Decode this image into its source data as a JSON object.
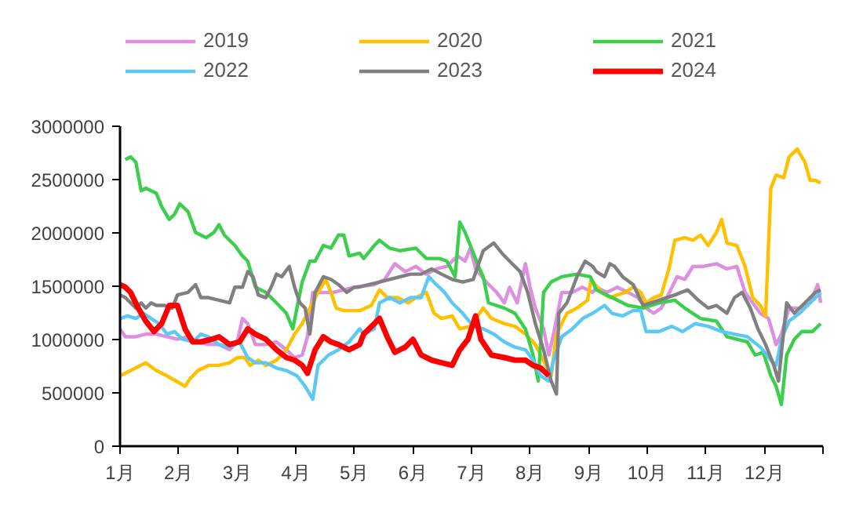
{
  "chart_data": {
    "type": "line",
    "xlim": [
      1,
      13
    ],
    "ylim": [
      0,
      3000000
    ],
    "xticks": [
      {
        "value": 1,
        "label": "1月"
      },
      {
        "value": 2,
        "label": "2月"
      },
      {
        "value": 3,
        "label": "3月"
      },
      {
        "value": 4,
        "label": "4月"
      },
      {
        "value": 5,
        "label": "5月"
      },
      {
        "value": 6,
        "label": "6月"
      },
      {
        "value": 7,
        "label": "7月"
      },
      {
        "value": 8,
        "label": "8月"
      },
      {
        "value": 9,
        "label": "9月"
      },
      {
        "value": 10,
        "label": "10月"
      },
      {
        "value": 11,
        "label": "11月"
      },
      {
        "value": 12,
        "label": "12月"
      },
      {
        "value": 13,
        "label": null
      }
    ],
    "yticks": [
      0,
      500000,
      1000000,
      1500000,
      2000000,
      2500000,
      3000000
    ],
    "grid": false,
    "legend": "top",
    "marker": "none",
    "line_style": "solid",
    "series": [
      {
        "name": "2019",
        "color": "#dd8fe0",
        "x": [
          1.0,
          1.09,
          1.27,
          1.44,
          1.62,
          1.8,
          1.98,
          2.16,
          2.33,
          2.51,
          2.69,
          2.87,
          3.0,
          3.09,
          3.18,
          3.31,
          3.49,
          3.67,
          3.84,
          3.98,
          4.11,
          4.2,
          4.29,
          4.47,
          4.64,
          4.82,
          5.0,
          5.34,
          5.52,
          5.69,
          5.87,
          6.05,
          6.23,
          6.4,
          6.58,
          6.76,
          6.89,
          6.98,
          7.07,
          7.25,
          7.43,
          7.56,
          7.65,
          7.78,
          7.92,
          8.0,
          8.09,
          8.23,
          8.32,
          8.4,
          8.54,
          8.72,
          8.89,
          9.07,
          9.13,
          9.31,
          9.49,
          9.67,
          9.84,
          9.98,
          10.11,
          10.24,
          10.38,
          10.51,
          10.64,
          10.78,
          10.96,
          11.18,
          11.36,
          11.53,
          11.67,
          11.8,
          11.93,
          12.07,
          12.2,
          12.29,
          12.42,
          12.6,
          12.78,
          12.91,
          12.96
        ],
        "values": [
          1100000,
          1026000,
          1026000,
          1051000,
          1051000,
          1026000,
          1002000,
          1026000,
          978000,
          953000,
          953000,
          904000,
          978000,
          1198000,
          1149000,
          953000,
          953000,
          978000,
          904000,
          831000,
          855000,
          1026000,
          1442000,
          1442000,
          1442000,
          1466000,
          1491000,
          1515000,
          1564000,
          1711000,
          1637000,
          1686000,
          1613000,
          1662000,
          1686000,
          1784000,
          1735000,
          1857000,
          1662000,
          1540000,
          1442000,
          1344000,
          1491000,
          1344000,
          1711000,
          1491000,
          1295000,
          1100000,
          855000,
          1051000,
          1442000,
          1442000,
          1491000,
          1442000,
          1491000,
          1442000,
          1491000,
          1442000,
          1393000,
          1295000,
          1246000,
          1295000,
          1442000,
          1589000,
          1564000,
          1686000,
          1686000,
          1711000,
          1662000,
          1686000,
          1442000,
          1344000,
          1246000,
          1198000,
          953000,
          1051000,
          1295000,
          1295000,
          1344000,
          1515000,
          1344000
        ]
      },
      {
        "name": "2020",
        "color": "#ffc000",
        "x": [
          1.0,
          1.18,
          1.44,
          1.62,
          1.8,
          2.11,
          2.2,
          2.33,
          2.51,
          2.69,
          2.87,
          3.0,
          3.13,
          3.22,
          3.36,
          3.49,
          3.67,
          3.84,
          3.98,
          4.11,
          4.24,
          4.38,
          4.51,
          4.6,
          4.69,
          4.82,
          5.09,
          5.29,
          5.43,
          5.56,
          5.74,
          5.92,
          6.05,
          6.23,
          6.36,
          6.49,
          6.67,
          6.8,
          6.98,
          7.2,
          7.34,
          7.56,
          7.74,
          7.92,
          8.09,
          8.27,
          8.36,
          8.45,
          8.63,
          8.8,
          8.98,
          9.04,
          9.22,
          9.36,
          9.49,
          9.62,
          9.76,
          9.89,
          9.98,
          10.11,
          10.24,
          10.38,
          10.47,
          10.64,
          10.78,
          10.91,
          11.04,
          11.18,
          11.27,
          11.36,
          11.53,
          11.67,
          11.8,
          11.93,
          12.02,
          12.11,
          12.2,
          12.33,
          12.42,
          12.56,
          12.69,
          12.78,
          12.87,
          12.96
        ],
        "values": [
          660000,
          709000,
          782000,
          709000,
          660000,
          562000,
          635000,
          709000,
          758000,
          758000,
          782000,
          831000,
          831000,
          758000,
          807000,
          758000,
          807000,
          904000,
          1051000,
          1149000,
          1295000,
          1442000,
          1564000,
          1442000,
          1295000,
          1271000,
          1271000,
          1320000,
          1466000,
          1393000,
          1393000,
          1344000,
          1393000,
          1442000,
          1246000,
          1198000,
          1222000,
          1100000,
          1124000,
          1295000,
          1198000,
          1149000,
          1124000,
          1051000,
          953000,
          758000,
          660000,
          1051000,
          1246000,
          1295000,
          1369000,
          1564000,
          1442000,
          1393000,
          1418000,
          1442000,
          1491000,
          1442000,
          1344000,
          1393000,
          1418000,
          1686000,
          1931000,
          1955000,
          1931000,
          1980000,
          1882000,
          2004000,
          2126000,
          1906000,
          1882000,
          1686000,
          1393000,
          1320000,
          1222000,
          2420000,
          2542000,
          2517000,
          2713000,
          2786000,
          2664000,
          2493000,
          2493000,
          2468000
        ]
      },
      {
        "name": "2021",
        "color": "#3ccf4e",
        "x": [
          1.09,
          1.18,
          1.27,
          1.36,
          1.44,
          1.53,
          1.62,
          1.71,
          1.84,
          1.93,
          2.02,
          2.16,
          2.29,
          2.47,
          2.6,
          2.69,
          2.78,
          2.96,
          3.09,
          3.18,
          3.31,
          3.49,
          3.67,
          3.84,
          3.95,
          4.02,
          4.11,
          4.24,
          4.33,
          4.47,
          4.6,
          4.73,
          4.82,
          4.91,
          5.09,
          5.16,
          5.34,
          5.43,
          5.6,
          5.78,
          6.05,
          6.23,
          6.45,
          6.58,
          6.72,
          6.8,
          6.89,
          6.98,
          7.12,
          7.2,
          7.29,
          7.56,
          7.74,
          7.92,
          8.05,
          8.14,
          8.23,
          8.36,
          8.54,
          8.8,
          9.03,
          9.13,
          9.4,
          9.67,
          9.93,
          10.2,
          10.47,
          10.64,
          10.91,
          11.18,
          11.36,
          11.53,
          11.71,
          11.84,
          11.98,
          12.11,
          12.2,
          12.29,
          12.38,
          12.51,
          12.64,
          12.82,
          12.96
        ],
        "values": [
          2688000,
          2713000,
          2664000,
          2395000,
          2420000,
          2395000,
          2371000,
          2248000,
          2126000,
          2175000,
          2273000,
          2200000,
          2004000,
          1955000,
          2004000,
          2077000,
          1980000,
          1882000,
          1784000,
          1735000,
          1491000,
          1442000,
          1344000,
          1246000,
          1100000,
          1295000,
          1540000,
          1735000,
          1735000,
          1882000,
          1857000,
          1980000,
          1980000,
          1784000,
          1809000,
          1760000,
          1882000,
          1931000,
          1857000,
          1833000,
          1857000,
          1760000,
          1760000,
          1735000,
          1589000,
          2102000,
          2004000,
          1882000,
          1686000,
          1589000,
          1344000,
          1295000,
          1246000,
          1100000,
          855000,
          611000,
          1442000,
          1540000,
          1589000,
          1613000,
          1589000,
          1466000,
          1393000,
          1320000,
          1295000,
          1344000,
          1369000,
          1295000,
          1198000,
          1173000,
          1026000,
          1002000,
          978000,
          855000,
          880000,
          660000,
          562000,
          391000,
          855000,
          1002000,
          1075000,
          1075000,
          1149000
        ]
      },
      {
        "name": "2022",
        "color": "#5bc8f5",
        "x": [
          1.0,
          1.13,
          1.27,
          1.4,
          1.53,
          1.67,
          1.8,
          1.93,
          2.07,
          2.24,
          2.38,
          2.51,
          2.69,
          2.87,
          3.04,
          3.18,
          3.31,
          3.49,
          3.67,
          3.84,
          4.02,
          4.16,
          4.29,
          4.38,
          4.56,
          4.73,
          4.91,
          5.09,
          5.16,
          5.34,
          5.43,
          5.6,
          5.78,
          5.96,
          6.14,
          6.27,
          6.4,
          6.54,
          6.67,
          6.85,
          7.03,
          7.2,
          7.38,
          7.56,
          7.74,
          7.92,
          8.05,
          8.18,
          8.32,
          8.4,
          8.54,
          8.72,
          8.9,
          9.07,
          9.27,
          9.4,
          9.58,
          9.76,
          9.89,
          9.98,
          10.2,
          10.42,
          10.6,
          10.82,
          11.04,
          11.27,
          11.49,
          11.71,
          11.93,
          12.11,
          12.2,
          12.29,
          12.42,
          12.6,
          12.78,
          12.96
        ],
        "values": [
          1198000,
          1222000,
          1198000,
          1246000,
          1198000,
          1149000,
          1051000,
          1075000,
          1002000,
          978000,
          1051000,
          1026000,
          953000,
          929000,
          978000,
          831000,
          782000,
          782000,
          733000,
          709000,
          660000,
          562000,
          440000,
          758000,
          855000,
          904000,
          978000,
          1100000,
          1051000,
          1100000,
          1344000,
          1393000,
          1344000,
          1393000,
          1393000,
          1589000,
          1515000,
          1442000,
          1344000,
          1246000,
          1124000,
          1100000,
          1051000,
          978000,
          929000,
          904000,
          807000,
          660000,
          611000,
          807000,
          1026000,
          1100000,
          1198000,
          1246000,
          1320000,
          1246000,
          1222000,
          1271000,
          1271000,
          1075000,
          1075000,
          1124000,
          1075000,
          1149000,
          1124000,
          1075000,
          1051000,
          1026000,
          929000,
          807000,
          758000,
          1002000,
          1173000,
          1246000,
          1344000,
          1442000
        ]
      },
      {
        "name": "2023",
        "color": "#808080",
        "x": [
          1.0,
          1.09,
          1.18,
          1.27,
          1.36,
          1.44,
          1.53,
          1.62,
          1.76,
          1.89,
          1.98,
          2.16,
          2.29,
          2.38,
          2.51,
          2.69,
          2.87,
          2.96,
          3.09,
          3.18,
          3.27,
          3.36,
          3.49,
          3.58,
          3.67,
          3.76,
          3.89,
          3.98,
          4.07,
          4.16,
          4.24,
          4.33,
          4.47,
          4.6,
          4.73,
          4.87,
          5.0,
          5.07,
          5.25,
          5.43,
          5.6,
          5.78,
          5.96,
          6.14,
          6.32,
          6.49,
          6.67,
          6.85,
          7.03,
          7.2,
          7.38,
          7.52,
          7.65,
          7.83,
          7.96,
          8.09,
          8.23,
          8.36,
          8.45,
          8.49,
          8.63,
          8.8,
          8.94,
          9.07,
          9.13,
          9.27,
          9.36,
          9.44,
          9.58,
          9.76,
          9.93,
          10.2,
          10.47,
          10.69,
          10.87,
          11.04,
          11.18,
          11.36,
          11.49,
          11.62,
          11.76,
          11.89,
          12.02,
          12.16,
          12.24,
          12.38,
          12.51,
          12.69,
          12.87,
          12.96
        ],
        "values": [
          1418000,
          1393000,
          1344000,
          1295000,
          1344000,
          1295000,
          1344000,
          1320000,
          1320000,
          1295000,
          1418000,
          1442000,
          1515000,
          1393000,
          1393000,
          1369000,
          1344000,
          1491000,
          1491000,
          1637000,
          1589000,
          1418000,
          1393000,
          1491000,
          1613000,
          1589000,
          1686000,
          1491000,
          1344000,
          1295000,
          1051000,
          1442000,
          1589000,
          1564000,
          1515000,
          1442000,
          1491000,
          1491000,
          1515000,
          1540000,
          1564000,
          1589000,
          1613000,
          1613000,
          1662000,
          1613000,
          1564000,
          1540000,
          1564000,
          1833000,
          1906000,
          1809000,
          1735000,
          1637000,
          1442000,
          1149000,
          904000,
          611000,
          489000,
          1246000,
          1344000,
          1589000,
          1735000,
          1686000,
          1637000,
          1589000,
          1711000,
          1686000,
          1589000,
          1515000,
          1320000,
          1369000,
          1418000,
          1466000,
          1369000,
          1295000,
          1320000,
          1246000,
          1393000,
          1442000,
          1295000,
          1100000,
          953000,
          758000,
          611000,
          1344000,
          1246000,
          1344000,
          1442000,
          1466000
        ]
      },
      {
        "name": "2024",
        "color": "#ff0000",
        "x": [
          1.0,
          1.09,
          1.18,
          1.31,
          1.44,
          1.58,
          1.71,
          1.84,
          1.98,
          2.11,
          2.24,
          2.38,
          2.56,
          2.69,
          2.87,
          3.04,
          3.18,
          3.31,
          3.49,
          3.67,
          3.84,
          3.98,
          4.11,
          4.2,
          4.33,
          4.47,
          4.6,
          4.73,
          4.91,
          5.09,
          5.16,
          5.34,
          5.43,
          5.56,
          5.69,
          5.87,
          6.0,
          6.14,
          6.32,
          6.49,
          6.67,
          6.8,
          6.94,
          7.07,
          7.16,
          7.34,
          7.56,
          7.74,
          7.92,
          8.05,
          8.18,
          8.32
        ],
        "values": [
          1515000,
          1491000,
          1442000,
          1295000,
          1173000,
          1075000,
          1149000,
          1320000,
          1320000,
          1100000,
          978000,
          978000,
          1002000,
          1026000,
          953000,
          978000,
          1100000,
          1051000,
          1002000,
          904000,
          831000,
          807000,
          758000,
          684000,
          904000,
          1026000,
          978000,
          953000,
          904000,
          953000,
          1051000,
          1149000,
          1198000,
          1026000,
          880000,
          929000,
          1002000,
          855000,
          807000,
          782000,
          758000,
          904000,
          1002000,
          1222000,
          1002000,
          855000,
          831000,
          807000,
          807000,
          758000,
          733000,
          660000
        ]
      }
    ]
  }
}
